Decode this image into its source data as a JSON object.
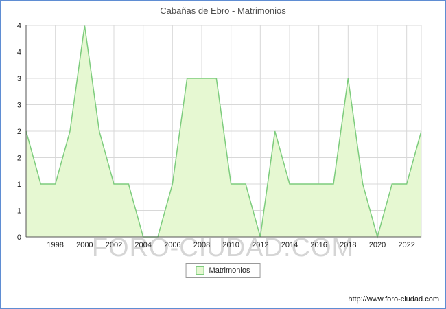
{
  "title": "Cabañas de Ebro - Matrimonios",
  "watermark": "FORO-CIUDAD.COM",
  "legend": {
    "label": "Matrimonios"
  },
  "footer": {
    "url": "http://www.foro-ciudad.com"
  },
  "colors": {
    "frame_border": "#5f8dd3",
    "grid": "#d8d8d8",
    "axis": "#555555",
    "area_fill": "#e6f8d2",
    "area_stroke": "#7dcc7d",
    "text": "#222222",
    "title": "#4d4d4d",
    "watermark": "#cbcbcb"
  },
  "chart_data": {
    "type": "area",
    "title": "Cabañas de Ebro - Matrimonios",
    "xlabel": "",
    "ylabel": "",
    "ylim": [
      0,
      4
    ],
    "grid": true,
    "legend_position": "bottom-center",
    "x": [
      1996,
      1997,
      1998,
      1999,
      2000,
      2001,
      2002,
      2003,
      2004,
      2005,
      2006,
      2007,
      2008,
      2009,
      2010,
      2011,
      2012,
      2013,
      2014,
      2015,
      2016,
      2017,
      2018,
      2019,
      2020,
      2021,
      2022,
      2023
    ],
    "series": [
      {
        "name": "Matrimonios",
        "values": [
          2,
          1,
          1,
          2,
          4,
          2,
          1,
          1,
          0,
          0,
          1,
          3,
          3,
          3,
          1,
          1,
          0,
          2,
          1,
          1,
          1,
          1,
          3,
          1,
          0,
          1,
          1,
          2
        ]
      }
    ],
    "y_tick_values": [
      0,
      0.5,
      1,
      1.5,
      2,
      2.5,
      3,
      3.5,
      4
    ],
    "y_tick_labels": [
      "0",
      "1",
      "1",
      "2",
      "2",
      "3",
      "3",
      "4",
      "4"
    ],
    "x_tick_years": [
      1998,
      2000,
      2002,
      2004,
      2006,
      2008,
      2010,
      2012,
      2014,
      2016,
      2018,
      2020,
      2022
    ],
    "x_tick_labels": [
      "1998",
      "2000",
      "2002",
      "2004",
      "2006",
      "2008",
      "2010",
      "2012",
      "2014",
      "2016",
      "2018",
      "2020",
      "2022"
    ]
  }
}
